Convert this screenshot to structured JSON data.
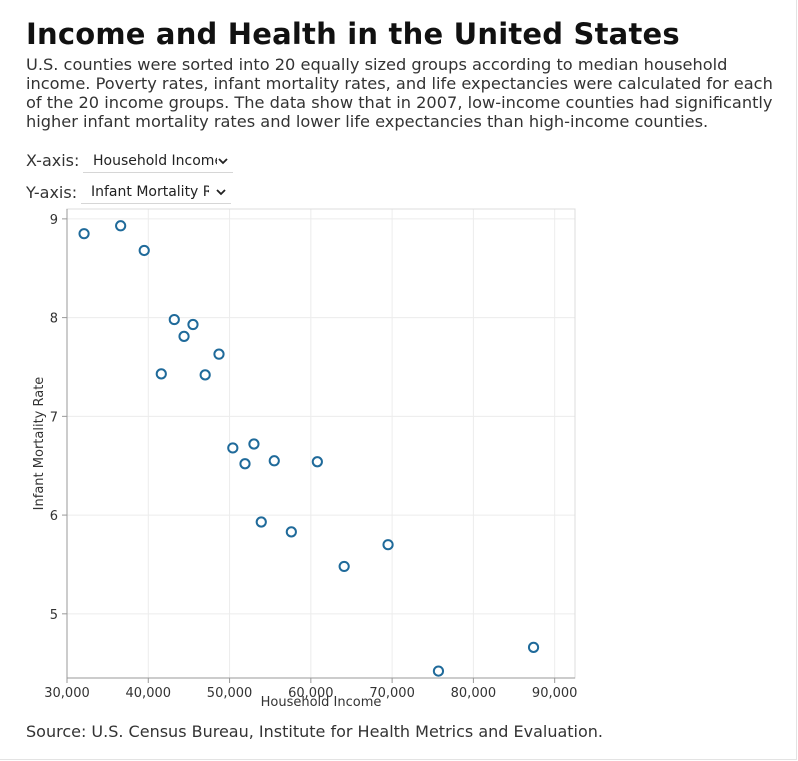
{
  "title": "Income and Health in the United States",
  "description": "U.S. counties were sorted into 20 equally sized groups according to median household income. Poverty rates, infant mortality rates, and life expectancies were calculated for each of the 20 income groups. The data show that in 2007, low-income counties had significantly higher infant mortality rates and lower life expectancies than high-income counties.",
  "controls": {
    "x_label": "X-axis:",
    "x_value": "Household Income",
    "y_label": "Y-axis:",
    "y_value": "Infant Mortality Rate"
  },
  "source": "Source: U.S. Census Bureau, Institute for Health Metrics and Evaluation.",
  "colors": {
    "point": "#1f6a9a",
    "grid": "#ececec",
    "axis": "#999999"
  },
  "chart_data": {
    "type": "scatter",
    "xlabel": "Household Income",
    "ylabel": "Infant Mortality Rate",
    "xlim": [
      30000,
      92500
    ],
    "ylim": [
      4.35,
      9.1
    ],
    "x_ticks": [
      30000,
      40000,
      50000,
      60000,
      70000,
      80000,
      90000
    ],
    "x_tick_labels": [
      "30,000",
      "40,000",
      "50,000",
      "60,000",
      "70,000",
      "80,000",
      "90,000"
    ],
    "y_ticks": [
      5,
      6,
      7,
      8,
      9
    ],
    "y_tick_labels": [
      "5",
      "6",
      "7",
      "8",
      "9"
    ],
    "grid": true,
    "series": [
      {
        "points": [
          {
            "x": 32100,
            "y": 8.85
          },
          {
            "x": 36600,
            "y": 8.93
          },
          {
            "x": 39500,
            "y": 8.68
          },
          {
            "x": 41600,
            "y": 7.43
          },
          {
            "x": 43200,
            "y": 7.98
          },
          {
            "x": 44400,
            "y": 7.81
          },
          {
            "x": 45500,
            "y": 7.93
          },
          {
            "x": 47000,
            "y": 7.42
          },
          {
            "x": 48700,
            "y": 7.63
          },
          {
            "x": 50400,
            "y": 6.68
          },
          {
            "x": 51900,
            "y": 6.52
          },
          {
            "x": 53000,
            "y": 6.72
          },
          {
            "x": 53900,
            "y": 5.93
          },
          {
            "x": 55500,
            "y": 6.55
          },
          {
            "x": 57600,
            "y": 5.83
          },
          {
            "x": 60800,
            "y": 6.54
          },
          {
            "x": 64100,
            "y": 5.48
          },
          {
            "x": 69500,
            "y": 5.7
          },
          {
            "x": 75700,
            "y": 4.42
          },
          {
            "x": 87400,
            "y": 4.66
          }
        ]
      }
    ]
  }
}
